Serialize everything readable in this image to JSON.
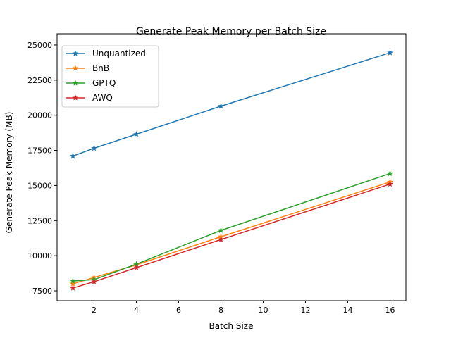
{
  "chart_data": {
    "type": "line",
    "title": "Generate Peak Memory per Batch Size",
    "xlabel": "Batch Size",
    "ylabel": "Generate Peak Memory (MB)",
    "xlim": [
      0.25,
      16.75
    ],
    "ylim": [
      6800,
      25800
    ],
    "xticks": [
      2,
      4,
      6,
      8,
      10,
      12,
      14,
      16
    ],
    "yticks": [
      7500,
      10000,
      12500,
      15000,
      17500,
      20000,
      22500,
      25000
    ],
    "x": [
      1,
      2,
      4,
      8,
      16
    ],
    "marker": "star",
    "grid": false,
    "legend_position": "top-left",
    "series": [
      {
        "name": "Unquantized",
        "color": "#1f77b4",
        "values": [
          17100,
          17650,
          18650,
          20650,
          24450
        ]
      },
      {
        "name": "BnB",
        "color": "#ff7f0e",
        "values": [
          8000,
          8450,
          9350,
          11350,
          15250
        ]
      },
      {
        "name": "GPTQ",
        "color": "#2ca02c",
        "values": [
          8200,
          8300,
          9400,
          11800,
          15850
        ]
      },
      {
        "name": "AWQ",
        "color": "#d62728",
        "values": [
          7700,
          8150,
          9150,
          11150,
          15100
        ]
      }
    ]
  }
}
